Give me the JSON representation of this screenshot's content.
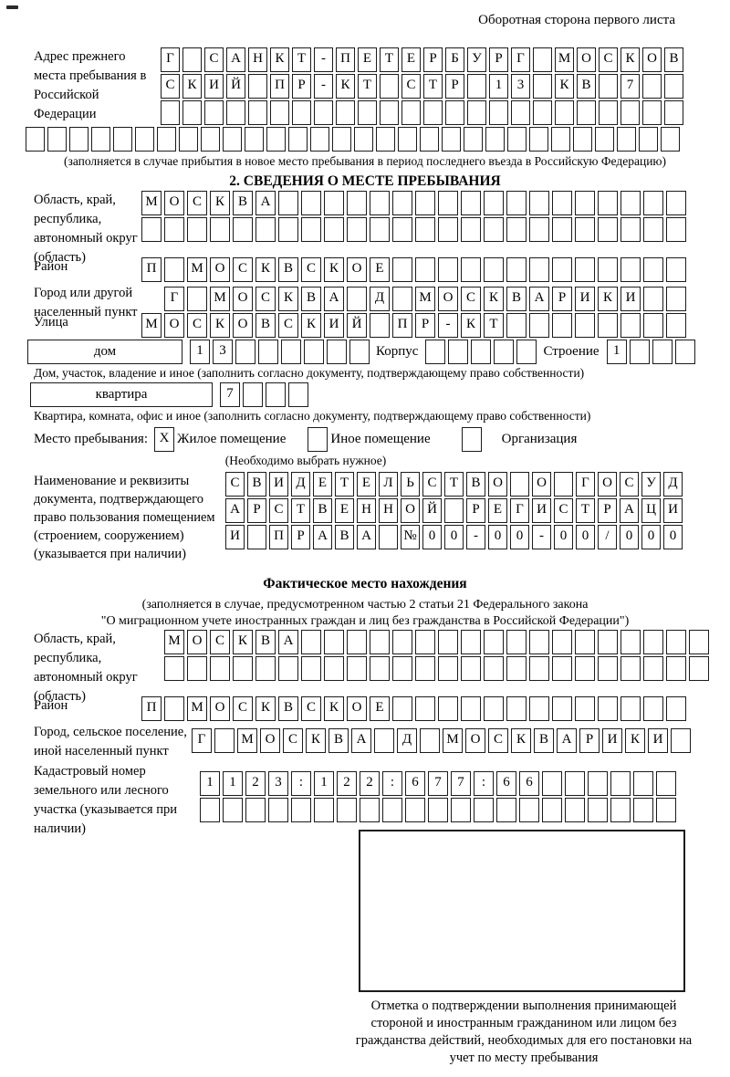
{
  "page": {
    "header_note": "Оборотная сторона первого листа"
  },
  "prev_address": {
    "label": "Адрес прежнего места пребывания в Российской Федерации",
    "line1": "Г САНКТ-ПЕТЕРБУРГ МОСКОВ",
    "line2": "СКИЙ ПР-КТ СТР 13 КВ 7",
    "line3": "",
    "line4": "",
    "note": "(заполняется в случае прибытия в новое место пребывания в период последнего въезда в Российскую Федерацию)"
  },
  "section2": {
    "title": "2. СВЕДЕНИЯ О МЕСТЕ ПРЕБЫВАНИЯ",
    "region_label": "Область, край, республика, автономный округ (область)",
    "region_line1": "МОСКВА",
    "region_line2": "",
    "district_label": "Район",
    "district_value": "П МОСКВСКОЕ",
    "city_label": "Город или другой населенный пункт",
    "city_value": "Г МОСКВА Д МОСКВАРИКИ",
    "street_label": "Улица",
    "street_value": "МОСКОВСКИЙ ПР-КТ",
    "house_label": "дом",
    "house_value": "13",
    "korpus_label": "Корпус",
    "korpus_value": "",
    "stroenie_label": "Строение",
    "stroenie_value": "1",
    "house_note": "Дом, участок, владение и иное (заполнить согласно документу, подтверждающему право собственности)",
    "apartment_label": "квартира",
    "apartment_value": "7",
    "apartment_note": "Квартира, комната, офис и иное (заполнить согласно документу, подтверждающему право собственности)",
    "stay_label": "Место пребывания:",
    "stay_options": [
      {
        "label": "Жилое помещение",
        "mark": "X"
      },
      {
        "label": "Иное помещение",
        "mark": ""
      },
      {
        "label": "Организация",
        "mark": ""
      }
    ],
    "stay_note": "(Необходимо выбрать нужное)",
    "document_label": "Наименование и реквизиты документа, подтверждающего право пользования помещением (строением, сооружением) (указывается при наличии)",
    "document_line1": "СВИДЕТЕЛЬСТВО О ГОСУД",
    "document_line2": "АРСТВЕННОЙ РЕГИСТРАЦИ",
    "document_line3": "И ПРАВА №00-00-00/000"
  },
  "actual_location": {
    "title": "Фактическое место нахождения",
    "note_line1": "(заполняется в случае, предусмотренном частью 2 статьи 21 Федерального закона",
    "note_line2": "\"О миграционном учете иностранных граждан и лиц без гражданства в Российской Федерации\")",
    "region_label": "Область, край, республика, автономный округ (область)",
    "region_line1": "МОСКВА",
    "region_line2": "",
    "district_label": "Район",
    "district_value": "П МОСКВСКОЕ",
    "city_label": "Город, сельское поселение, иной населенный пункт",
    "city_value": "Г МОСКВА Д МОСКВАРИКИ",
    "cadastral_label": "Кадастровый номер земельного или лесного участка (указывается при наличии)",
    "cadastral_line1": "1123:122:677:66",
    "cadastral_line2": ""
  },
  "stamp": {
    "caption": "Отметка о подтверждении выполнения принимающей стороной и иностранным гражданином или лицом без гражданства действий, необходимых для его постановки на учет по месту пребывания"
  }
}
